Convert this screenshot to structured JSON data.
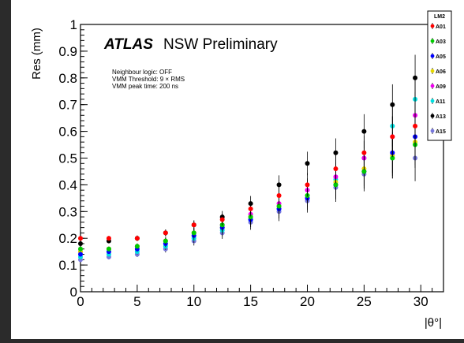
{
  "chart_data": {
    "type": "scatter",
    "xlabel": "|θ°|",
    "ylabel": "Res (mm)",
    "xlim": [
      0,
      32
    ],
    "ylim": [
      0,
      1
    ],
    "xticks": [
      "0",
      "5",
      "10",
      "15",
      "20",
      "25",
      "30"
    ],
    "yticks": [
      "0",
      "0.1",
      "0.2",
      "0.3",
      "0.4",
      "0.5",
      "0.6",
      "0.7",
      "0.8",
      "0.9",
      "1"
    ],
    "grid": false,
    "legend_placement": "top-right",
    "atlas_label": "ATLAS",
    "title_rest": "NSW Preliminary",
    "info_lines": [
      "Neighbour logic: OFF",
      "VMM Threshold: 9 × RMS",
      "VMM peak time: 200 ns"
    ],
    "legend_title": "LM2",
    "series": [
      {
        "name": "A01",
        "color": "#ff0000",
        "x": [
          0,
          2.5,
          5,
          7.5,
          10,
          12.5,
          15,
          17.5,
          20,
          22.5,
          25,
          27.5,
          29.5
        ],
        "y": [
          0.2,
          0.2,
          0.2,
          0.22,
          0.25,
          0.27,
          0.31,
          0.36,
          0.4,
          0.46,
          0.52,
          0.58,
          0.62
        ]
      },
      {
        "name": "A03",
        "color": "#00cc00",
        "x": [
          0,
          2.5,
          5,
          7.5,
          10,
          12.5,
          15,
          17.5,
          20,
          22.5,
          25,
          27.5,
          29.5
        ],
        "y": [
          0.16,
          0.16,
          0.17,
          0.19,
          0.22,
          0.25,
          0.28,
          0.32,
          0.36,
          0.4,
          0.45,
          0.5,
          0.55
        ]
      },
      {
        "name": "A05",
        "color": "#0000ff",
        "x": [
          0,
          2.5,
          5,
          7.5,
          10,
          12.5,
          15,
          17.5,
          20,
          22.5,
          25,
          27.5,
          29.5
        ],
        "y": [
          0.14,
          0.15,
          0.16,
          0.18,
          0.21,
          0.24,
          0.27,
          0.31,
          0.35,
          0.4,
          0.45,
          0.52,
          0.58
        ]
      },
      {
        "name": "A06",
        "color": "#e6d800",
        "x": [
          0,
          2.5,
          5,
          7.5,
          10,
          12.5,
          15,
          17.5,
          20,
          22.5,
          25,
          27.5,
          29.5
        ],
        "y": [
          0.15,
          0.16,
          0.17,
          0.19,
          0.22,
          0.24,
          0.28,
          0.32,
          0.36,
          0.41,
          0.46,
          0.51,
          0.56
        ]
      },
      {
        "name": "A09",
        "color": "#ee00ee",
        "x": [
          0,
          2.5,
          5,
          7.5,
          10,
          12.5,
          15,
          17.5,
          20,
          22.5,
          25,
          27.5,
          29.5
        ],
        "y": [
          0.15,
          0.16,
          0.17,
          0.19,
          0.22,
          0.25,
          0.29,
          0.33,
          0.38,
          0.43,
          0.5,
          0.58,
          0.66
        ]
      },
      {
        "name": "A11",
        "color": "#00e0e0",
        "x": [
          0,
          2.5,
          5,
          7.5,
          10,
          12.5,
          15,
          17.5,
          20,
          22.5,
          25,
          27.5,
          29.5
        ],
        "y": [
          0.13,
          0.14,
          0.15,
          0.17,
          0.2,
          0.23,
          0.27,
          0.31,
          0.36,
          0.42,
          0.5,
          0.62,
          0.72
        ]
      },
      {
        "name": "A13",
        "color": "#000000",
        "x": [
          0,
          2.5,
          5,
          7.5,
          10,
          12.5,
          15,
          17.5,
          20,
          22.5,
          25,
          27.5,
          29.5
        ],
        "y": [
          0.18,
          0.19,
          0.2,
          0.22,
          0.25,
          0.28,
          0.33,
          0.4,
          0.48,
          0.52,
          0.6,
          0.7,
          0.8
        ]
      },
      {
        "name": "A15",
        "color": "#7777dd",
        "x": [
          0,
          2.5,
          5,
          7.5,
          10,
          12.5,
          15,
          17.5,
          20,
          22.5,
          25,
          27.5,
          29.5
        ],
        "y": [
          0.12,
          0.13,
          0.14,
          0.16,
          0.19,
          0.22,
          0.26,
          0.3,
          0.34,
          0.39,
          0.44,
          0.5,
          0.5
        ]
      }
    ]
  }
}
